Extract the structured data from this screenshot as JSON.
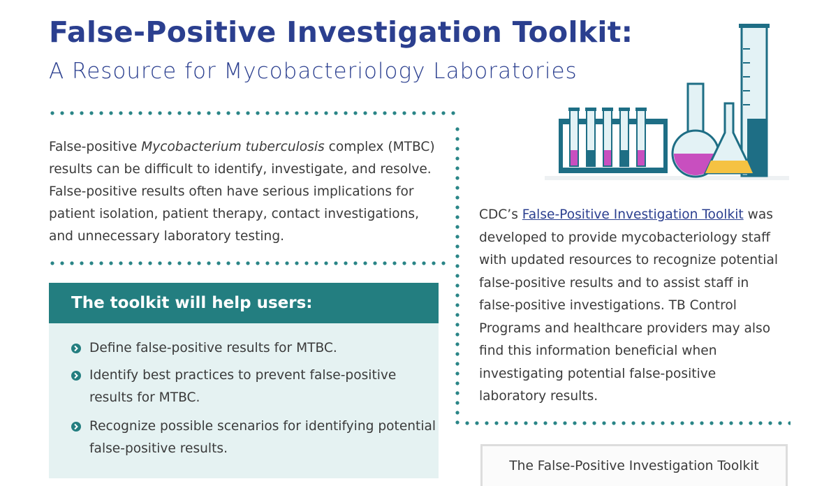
{
  "header": {
    "title": "False-Positive Investigation Toolkit:",
    "subtitle": "A Resource for Mycobacteriology Laboratories"
  },
  "intro": {
    "before": "False-positive ",
    "italic": "Mycobacterium tuberculosis",
    "after": " complex (MTBC) results can be difficult to identify, investigate, and resolve. False-positive results often have serious implications for patient isolation, patient therapy, contact investigations, and unnecessary laboratory testing."
  },
  "box": {
    "heading": "The toolkit will help users:",
    "items": [
      "Define false-positive results for MTBC.",
      "Identify best practices to prevent false-positive results for MTBC.",
      "Recognize possible scenarios for identifying potential false-positive results."
    ]
  },
  "about": {
    "before": "CDC’s ",
    "link": "False-Positive Investigation Toolkit",
    "after": " was developed to provide mycobacteriology staff with updated resources to recognize potential false-positive results and to assist staff in false-positive investigations. TB Control Programs and healthcare providers may also find this information beneficial when investigating potential false-positive laboratory results."
  },
  "callout": {
    "text": "The False-Positive Investigation Toolkit"
  }
}
